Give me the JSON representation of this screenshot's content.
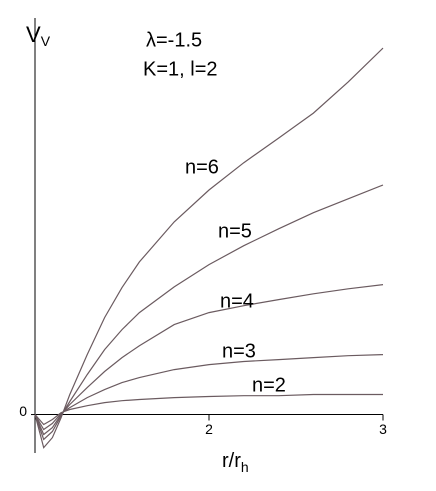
{
  "chart_data": {
    "type": "line",
    "title": "λ=-1.5",
    "subtitle": "K=1, l=2",
    "y_label": "V",
    "y_label_sub": "V",
    "x_label": "r/r",
    "x_label_sub": "h",
    "x": [
      1.0,
      1.05,
      1.1,
      1.15,
      1.2,
      1.3,
      1.4,
      1.5,
      1.6,
      1.8,
      2.0,
      2.2,
      2.4,
      2.6,
      2.8,
      3.0
    ],
    "series": [
      {
        "name": "n=2",
        "color": "#6b5b60",
        "values": [
          0,
          -0.026,
          -0.013,
          0.005,
          0.013,
          0.023,
          0.031,
          0.036,
          0.039,
          0.044,
          0.047,
          0.049,
          0.049,
          0.052,
          0.052,
          0.052
        ]
      },
      {
        "name": "n=3",
        "color": "#6b5b60",
        "values": [
          0,
          -0.039,
          -0.023,
          0.003,
          0.018,
          0.044,
          0.065,
          0.083,
          0.096,
          0.117,
          0.13,
          0.138,
          0.143,
          0.148,
          0.153,
          0.156
        ]
      },
      {
        "name": "n=4",
        "color": "#6b5b60",
        "values": [
          0,
          -0.052,
          -0.034,
          0,
          0.026,
          0.07,
          0.112,
          0.148,
          0.179,
          0.234,
          0.265,
          0.283,
          0.299,
          0.314,
          0.327,
          0.338
        ]
      },
      {
        "name": "n=5",
        "color": "#6b5b60",
        "values": [
          0,
          -0.065,
          -0.044,
          -0.003,
          0.034,
          0.104,
          0.169,
          0.221,
          0.265,
          0.332,
          0.39,
          0.439,
          0.483,
          0.525,
          0.561,
          0.597
        ]
      },
      {
        "name": "n=6",
        "color": "#6b5b60",
        "values": [
          0,
          -0.086,
          -0.06,
          -0.008,
          0.052,
          0.156,
          0.252,
          0.33,
          0.397,
          0.501,
          0.584,
          0.655,
          0.719,
          0.784,
          0.865,
          0.953
        ]
      }
    ],
    "xlim": [
      1,
      3
    ],
    "ylim": [
      -0.1,
      1.0
    ],
    "xticks": [
      2,
      3
    ],
    "yticks": [
      0
    ]
  }
}
